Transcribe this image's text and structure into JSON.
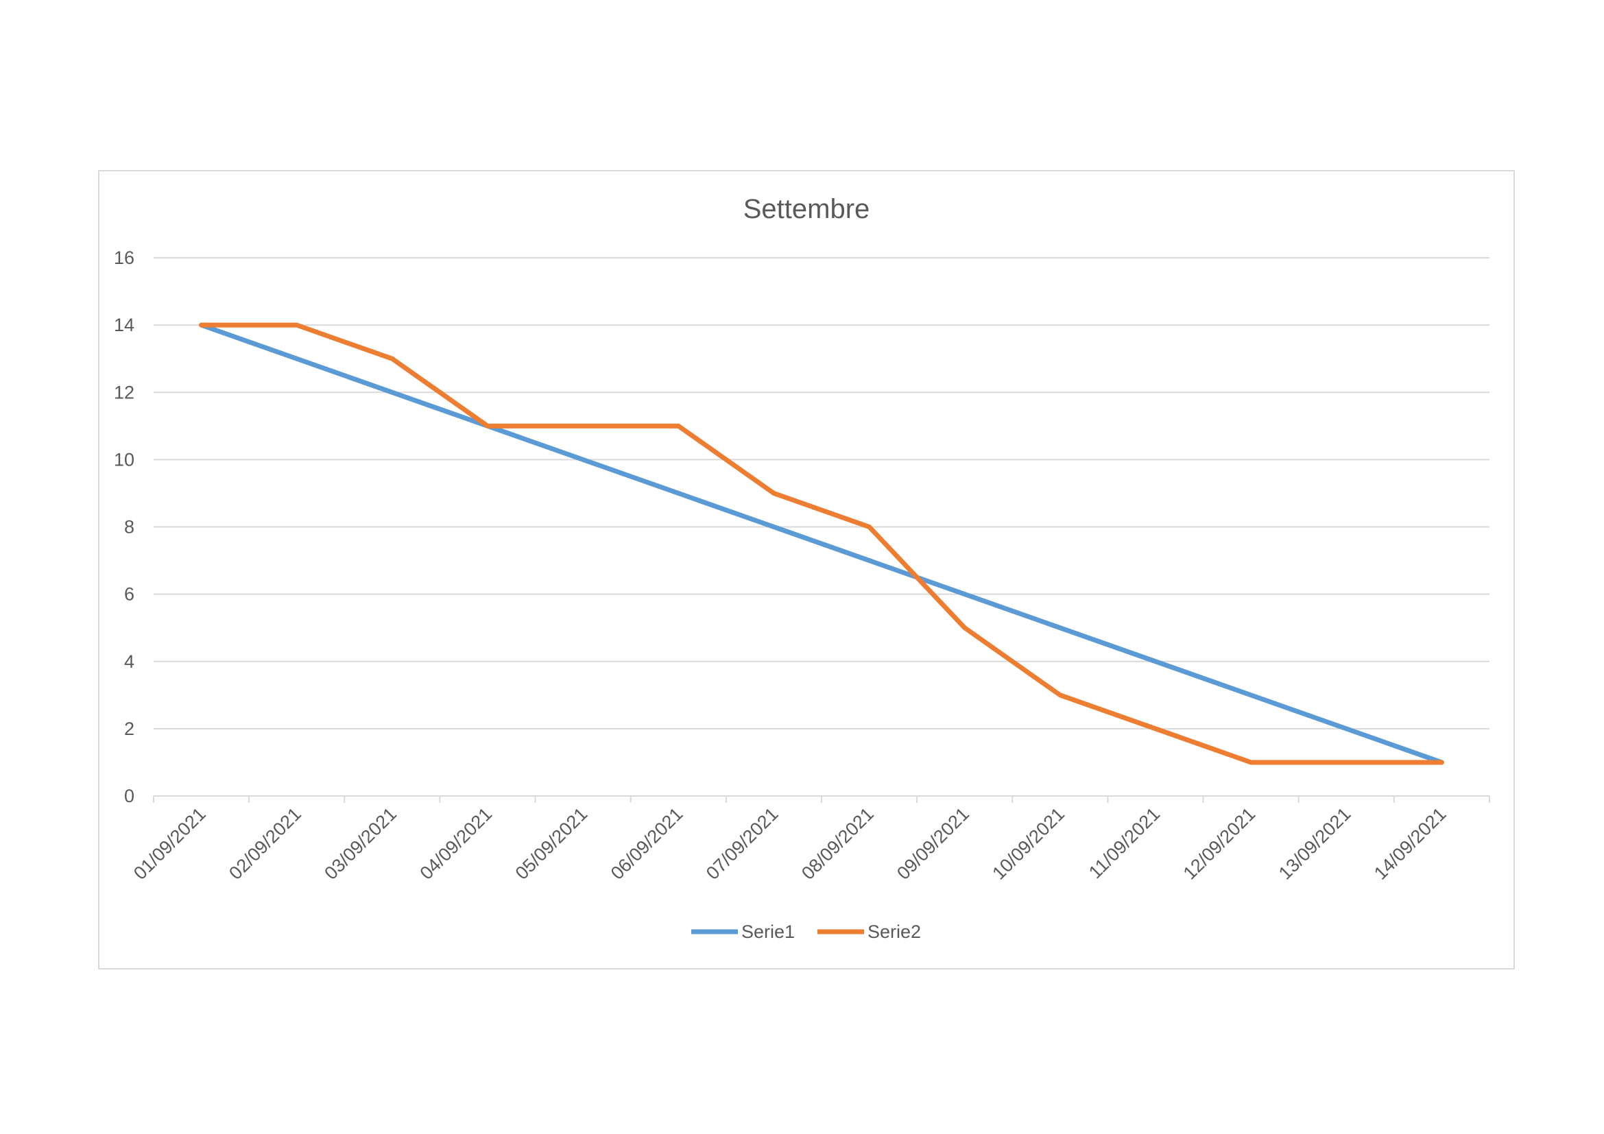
{
  "chart_data": {
    "type": "line",
    "title": "Settembre",
    "xlabel": "",
    "ylabel": "",
    "categories": [
      "01/09/2021",
      "02/09/2021",
      "03/09/2021",
      "04/09/2021",
      "05/09/2021",
      "06/09/2021",
      "07/09/2021",
      "08/09/2021",
      "09/09/2021",
      "10/09/2021",
      "11/09/2021",
      "12/09/2021",
      "13/09/2021",
      "14/09/2021"
    ],
    "ylim": [
      0,
      16
    ],
    "yticks": [
      0,
      2,
      4,
      6,
      8,
      10,
      12,
      14,
      16
    ],
    "grid": true,
    "legend": "bottom",
    "series": [
      {
        "name": "Serie1",
        "color": "#5b9bd5",
        "points": [
          [
            0,
            14
          ],
          [
            13,
            1
          ]
        ]
      },
      {
        "name": "Serie2",
        "color": "#ed7d31",
        "points": [
          [
            0,
            14
          ],
          [
            1,
            14
          ],
          [
            2,
            13
          ],
          [
            3,
            11
          ],
          [
            5,
            11
          ],
          [
            6,
            9
          ],
          [
            7,
            8
          ],
          [
            8,
            5
          ],
          [
            9,
            3
          ],
          [
            11,
            1
          ],
          [
            13,
            1
          ]
        ]
      }
    ]
  }
}
